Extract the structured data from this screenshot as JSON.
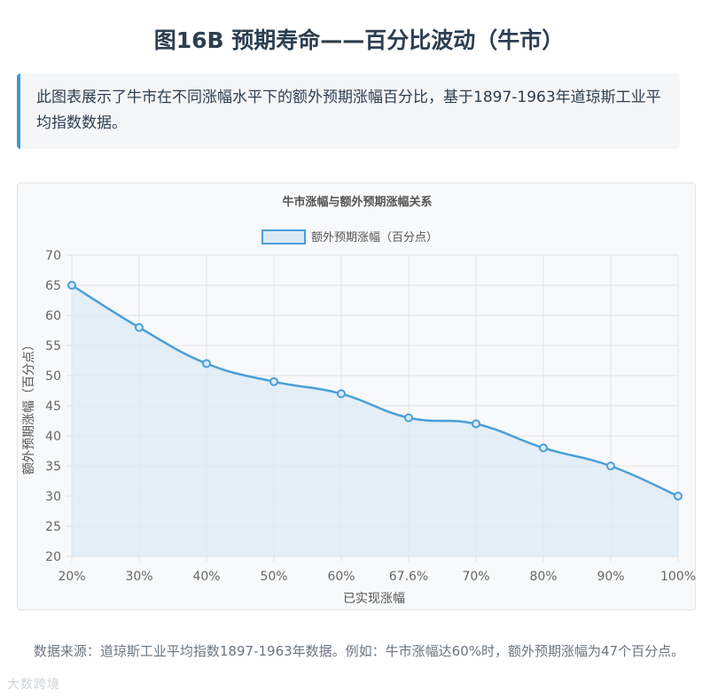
{
  "page": {
    "title": "图16B 预期寿命——百分比波动（牛市）",
    "intro": "此图表展示了牛市在不同涨幅水平下的额外预期涨幅百分比，基于1897-1963年道琼斯工业平均指数数据。",
    "footnote": "数据来源：道琼斯工业平均指数1897-1963年数据。例如：牛市涨幅达60%时，额外预期涨幅为47个百分点。",
    "watermark": "大数跨境"
  },
  "colors": {
    "accent": "#3d9ad1",
    "line": "#4a9fd8",
    "fill": "#dceaf6",
    "grid": "#dfe3e7"
  },
  "chart_data": {
    "type": "line",
    "title": "牛市涨幅与额外预期涨幅关系",
    "xlabel": "已实现涨幅",
    "ylabel": "额外预期涨幅（百分点）",
    "categories": [
      "20%",
      "30%",
      "40%",
      "50%",
      "60%",
      "67.6%",
      "70%",
      "80%",
      "90%",
      "100%"
    ],
    "series": [
      {
        "name": "额外预期涨幅（百分点）",
        "values": [
          65,
          58,
          52,
          49,
          47,
          43,
          42,
          38,
          35,
          30
        ]
      }
    ],
    "ylim": [
      20,
      70
    ],
    "yticks": [
      20,
      25,
      30,
      35,
      40,
      45,
      50,
      55,
      60,
      65,
      70
    ],
    "grid": true,
    "legend_position": "top",
    "fill_area": true
  }
}
